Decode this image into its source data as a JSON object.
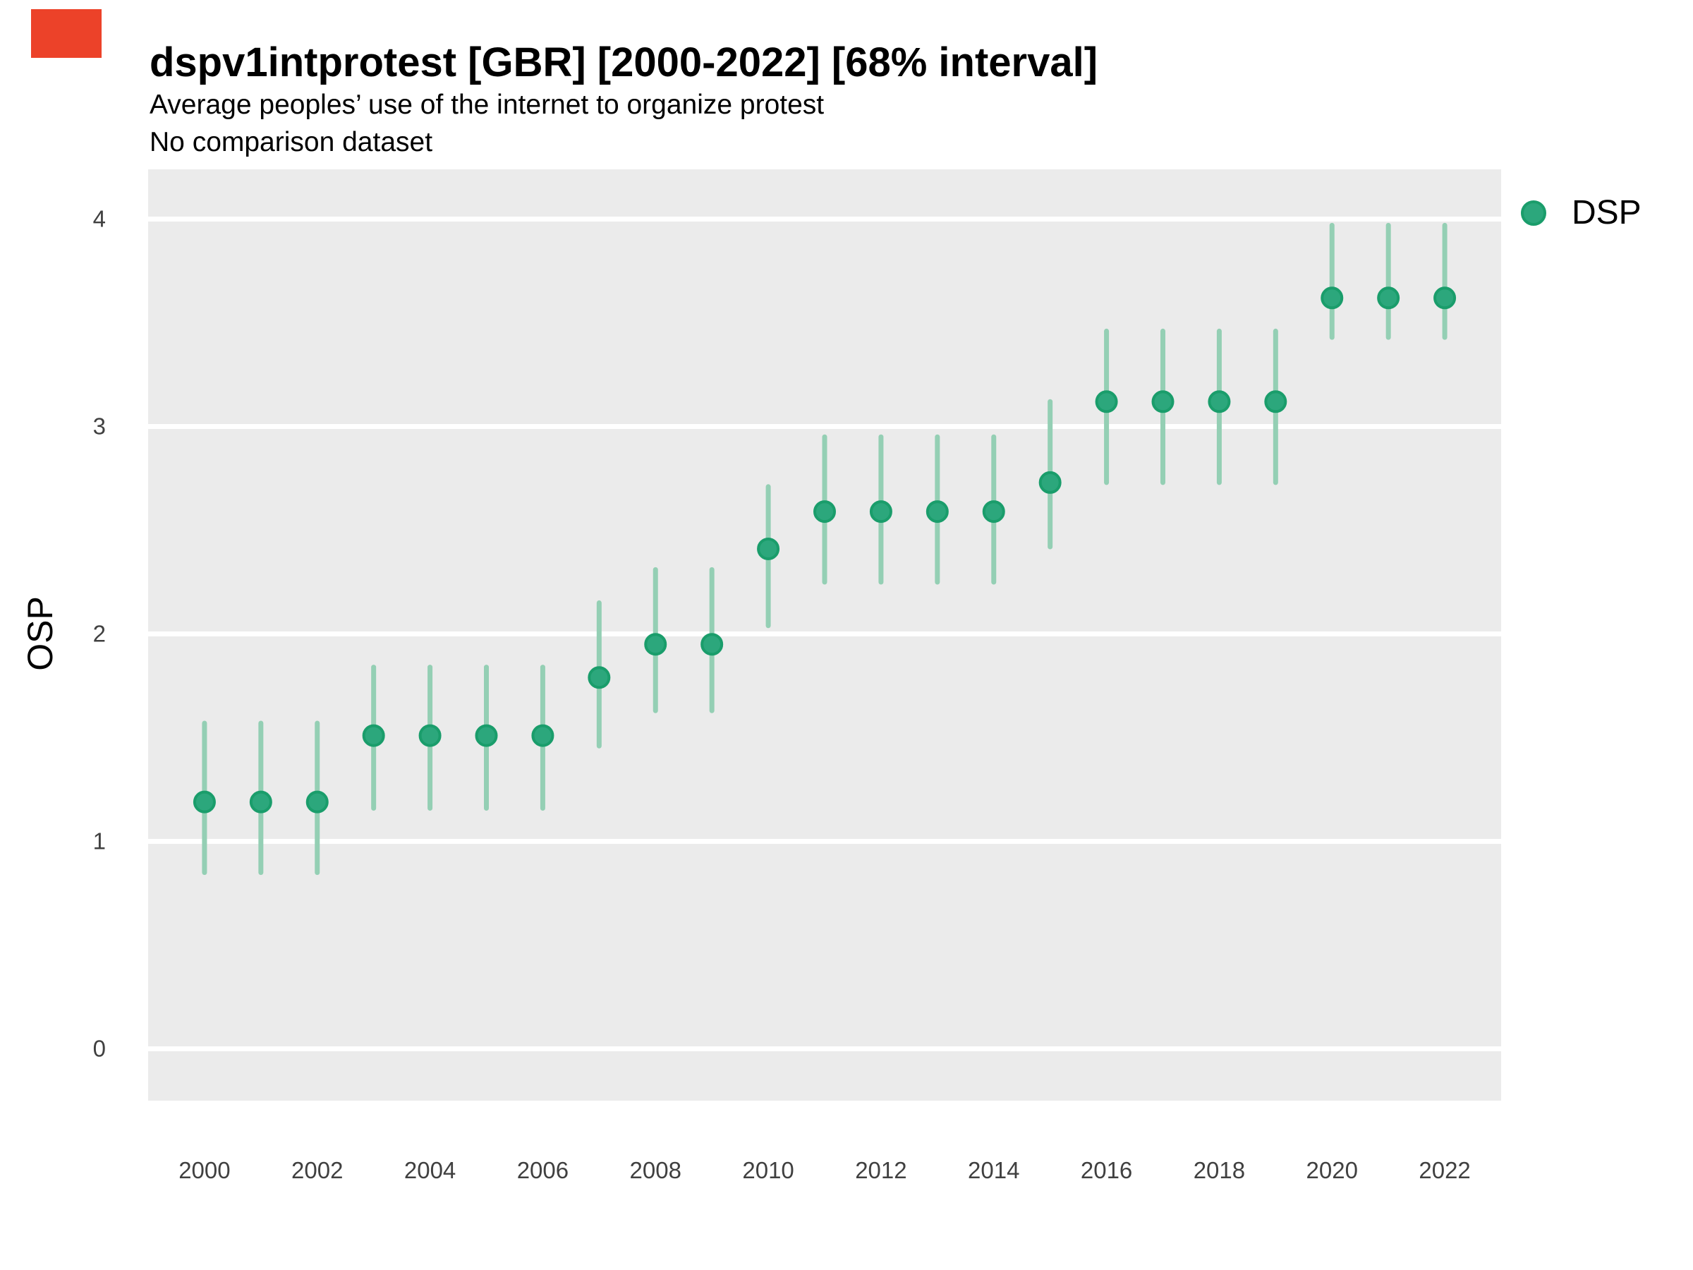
{
  "header": {
    "title": "dspv1intprotest [GBR] [2000-2022] [68% interval]",
    "subtitle": "Average peoples’ use of the internet to organize protest",
    "note": "No comparison dataset"
  },
  "legend": {
    "label": "DSP",
    "position": "right"
  },
  "axes": {
    "y_label": "OSP",
    "y_tick_labels": [
      "0",
      "1",
      "2",
      "3",
      "4"
    ],
    "x_tick_labels": [
      "2000",
      "2002",
      "2004",
      "2006",
      "2008",
      "2010",
      "2012",
      "2014",
      "2016",
      "2018",
      "2020",
      "2022"
    ]
  },
  "colors": {
    "red_marker": "#EC4229",
    "panel_background": "#EBEBEB",
    "gridline": "#FFFFFF",
    "point_fill": "#2CA77C",
    "point_stroke": "#1A9D6B",
    "interval_bar": "#94CFB4",
    "tick_text": "#404040",
    "text": "#000000"
  },
  "chart_data": {
    "type": "scatter",
    "title": "dspv1intprotest [GBR] [2000-2022] [68% interval]",
    "subtitle": "Average peoples’ use of the internet to organize protest",
    "note": "No comparison dataset",
    "interval_label": "68% interval",
    "xlabel": "",
    "ylabel": "OSP",
    "xlim": [
      1999,
      2023
    ],
    "ylim": [
      -0.25,
      4.24
    ],
    "x_ticks": [
      2000,
      2002,
      2004,
      2006,
      2008,
      2010,
      2012,
      2014,
      2016,
      2018,
      2020,
      2022
    ],
    "y_ticks": [
      0,
      1,
      2,
      3,
      4
    ],
    "grid": "horizontal-major-only",
    "legend_position": "right",
    "series": [
      {
        "name": "DSP",
        "x": [
          2000,
          2001,
          2002,
          2003,
          2004,
          2005,
          2006,
          2007,
          2008,
          2009,
          2010,
          2011,
          2012,
          2013,
          2014,
          2015,
          2016,
          2017,
          2018,
          2019,
          2020,
          2021,
          2022
        ],
        "y": [
          1.19,
          1.19,
          1.19,
          1.51,
          1.51,
          1.51,
          1.51,
          1.79,
          1.95,
          1.95,
          2.41,
          2.59,
          2.59,
          2.59,
          2.59,
          2.73,
          3.12,
          3.12,
          3.12,
          3.12,
          3.62,
          3.62,
          3.62
        ],
        "y_low": [
          0.85,
          0.85,
          0.85,
          1.16,
          1.16,
          1.16,
          1.16,
          1.46,
          1.63,
          1.63,
          2.04,
          2.25,
          2.25,
          2.25,
          2.25,
          2.42,
          2.73,
          2.73,
          2.73,
          2.73,
          3.43,
          3.43,
          3.43
        ],
        "y_high": [
          1.57,
          1.57,
          1.57,
          1.84,
          1.84,
          1.84,
          1.84,
          2.15,
          2.31,
          2.31,
          2.71,
          2.95,
          2.95,
          2.95,
          2.95,
          3.12,
          3.46,
          3.46,
          3.46,
          3.46,
          3.97,
          3.97,
          3.97
        ]
      }
    ]
  }
}
